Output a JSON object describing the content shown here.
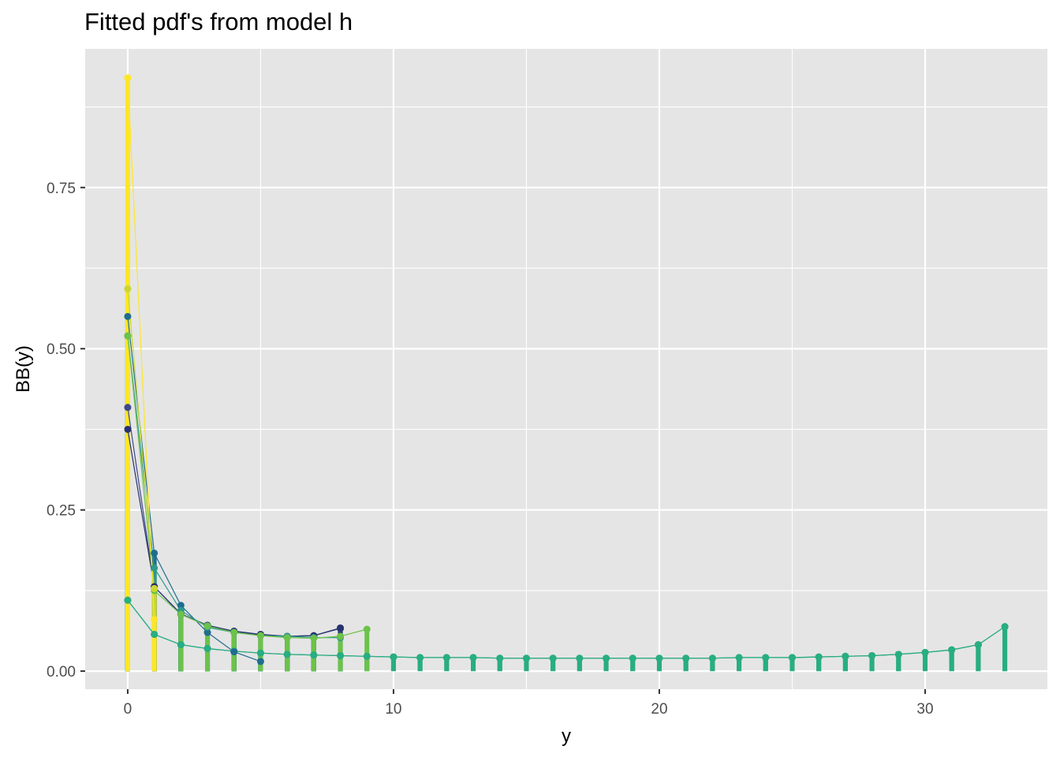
{
  "title": "Fitted pdf's from model h",
  "chart_data": {
    "type": "line",
    "title": "Fitted pdf's from model h",
    "xlabel": "y",
    "ylabel": "BB(y)",
    "xlim": [
      -1.6,
      34.6
    ],
    "ylim": [
      -0.028,
      0.965
    ],
    "x_ticks": [
      0,
      10,
      20,
      30
    ],
    "x_tick_labels": [
      "0",
      "10",
      "20",
      "30"
    ],
    "y_ticks": [
      0,
      0.25,
      0.5,
      0.75
    ],
    "y_tick_labels": [
      "0.00",
      "0.25",
      "0.50",
      "0.75"
    ],
    "grid": true,
    "legend": "none",
    "panel_background": "#e5e5e5",
    "grid_color": "#ffffff",
    "series": [
      {
        "color": "#21908c",
        "x": [
          0,
          1,
          2,
          3,
          4,
          5,
          6,
          7,
          8,
          9,
          10,
          11,
          12,
          13,
          14,
          15,
          16,
          17,
          18,
          19,
          20,
          21,
          22,
          23,
          24,
          25,
          26,
          27,
          28,
          29,
          30,
          31,
          32,
          33
        ],
        "values": [
          0.11,
          0.057,
          0.041,
          0.035,
          0.031,
          0.028,
          0.026,
          0.025,
          0.024,
          0.023,
          0.022,
          0.021,
          0.021,
          0.021,
          0.02,
          0.02,
          0.02,
          0.02,
          0.02,
          0.02,
          0.02,
          0.02,
          0.02,
          0.021,
          0.021,
          0.021,
          0.022,
          0.023,
          0.024,
          0.026,
          0.029,
          0.033,
          0.041,
          0.069
        ]
      },
      {
        "color": "#28ae80",
        "x": [
          0,
          1,
          2,
          3,
          4,
          5,
          6,
          7,
          8,
          9,
          10,
          11,
          12,
          13,
          14,
          15,
          16,
          17,
          18,
          19,
          20,
          21,
          22,
          23,
          24,
          25,
          26,
          27,
          28,
          29,
          30,
          31,
          32,
          33
        ],
        "values": [
          0.11,
          0.057,
          0.041,
          0.035,
          0.031,
          0.028,
          0.026,
          0.025,
          0.024,
          0.023,
          0.022,
          0.021,
          0.021,
          0.021,
          0.02,
          0.02,
          0.02,
          0.02,
          0.02,
          0.02,
          0.02,
          0.02,
          0.02,
          0.021,
          0.021,
          0.021,
          0.022,
          0.023,
          0.024,
          0.026,
          0.029,
          0.033,
          0.041,
          0.069
        ]
      },
      {
        "color": "#3e4a89",
        "x": [
          0,
          1,
          2,
          3,
          4,
          5,
          6,
          7,
          8
        ],
        "values": [
          0.409,
          0.131,
          0.089,
          0.071,
          0.061,
          0.056,
          0.054,
          0.055,
          0.066
        ]
      },
      {
        "color": "#26336e",
        "x": [
          0,
          1,
          2,
          3,
          4,
          5,
          6,
          7,
          8
        ],
        "values": [
          0.375,
          0.131,
          0.088,
          0.071,
          0.062,
          0.057,
          0.054,
          0.055,
          0.067
        ]
      },
      {
        "color": "#1f6d8e",
        "x": [
          0,
          1,
          2,
          3,
          4,
          5
        ],
        "values": [
          0.55,
          0.183,
          0.102,
          0.06,
          0.03,
          0.015
        ]
      },
      {
        "color": "#2c9a8a",
        "x": [
          0,
          1,
          2,
          3,
          4,
          5,
          6,
          7,
          8
        ],
        "values": [
          0.52,
          0.16,
          0.094,
          0.068,
          0.06,
          0.055,
          0.054,
          0.052,
          0.052
        ]
      },
      {
        "color": "#6cc24a",
        "x": [
          0,
          1,
          2,
          3,
          4,
          5,
          6,
          7,
          8,
          9
        ],
        "values": [
          0.52,
          0.125,
          0.088,
          0.07,
          0.06,
          0.055,
          0.052,
          0.051,
          0.054,
          0.065
        ]
      },
      {
        "color": "#ccd72d",
        "x": [
          0,
          1
        ],
        "values": [
          0.593,
          0.128
        ]
      },
      {
        "color": "#fde725",
        "x": [
          0,
          1
        ],
        "values": [
          0.92,
          0.08
        ]
      }
    ]
  }
}
